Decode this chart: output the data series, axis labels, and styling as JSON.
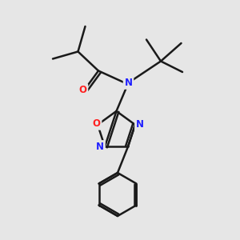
{
  "bg_color": "#e6e6e6",
  "bond_color": "#1a1a1a",
  "N_color": "#2020ff",
  "O_color": "#ff2020",
  "font_size_atom": 8.5,
  "line_width": 1.8,
  "fig_size": [
    3.0,
    3.0
  ],
  "dpi": 100,
  "xlim": [
    0,
    10
  ],
  "ylim": [
    0,
    10
  ]
}
